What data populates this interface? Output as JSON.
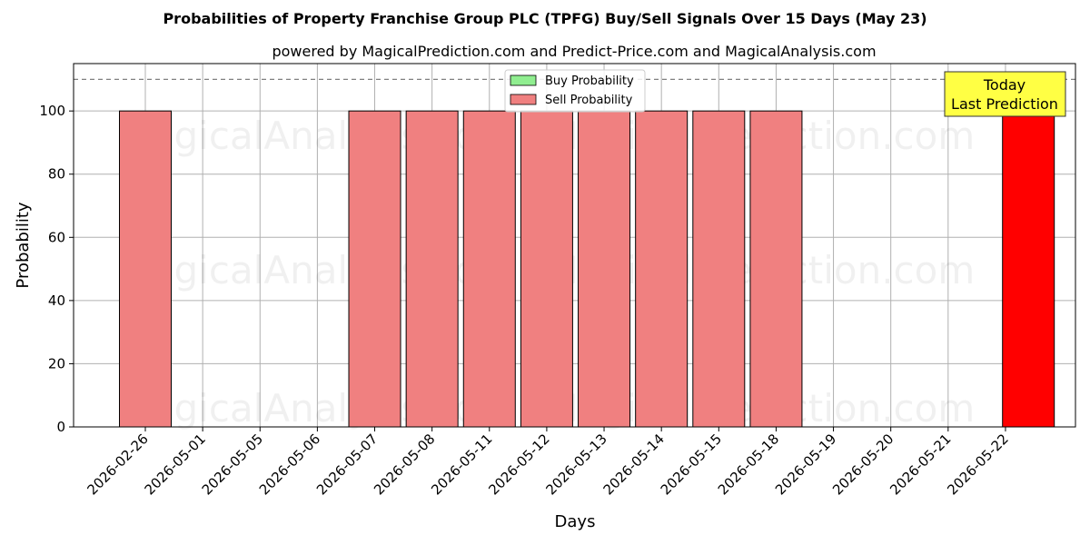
{
  "chart_data": {
    "type": "bar",
    "title": "Probabilities of Property Franchise Group PLC (TPFG) Buy/Sell Signals Over 15 Days (May 23)",
    "subtitle": "powered by MagicalPrediction.com and Predict-Price.com and MagicalAnalysis.com",
    "xlabel": "Days",
    "ylabel": "Probability",
    "ylim": [
      0,
      115
    ],
    "yticks": [
      0,
      20,
      40,
      60,
      80,
      100
    ],
    "reference_line": 110,
    "grid": true,
    "legend_position": "top-center",
    "categories": [
      "2026-02-26",
      "2026-05-01",
      "2026-05-05",
      "2026-05-06",
      "2026-05-07",
      "2026-05-08",
      "2026-05-11",
      "2026-05-12",
      "2026-05-13",
      "2026-05-14",
      "2026-05-15",
      "2026-05-18",
      "2026-05-19",
      "2026-05-20",
      "2026-05-21",
      "2026-05-22"
    ],
    "series": [
      {
        "name": "Buy Probability",
        "color": "#90ee90",
        "values": [
          0,
          0,
          0,
          0,
          0,
          0,
          0,
          0,
          0,
          0,
          0,
          0,
          0,
          0,
          0,
          0
        ]
      },
      {
        "name": "Sell Probability",
        "color": "#f08080",
        "values": [
          100,
          0,
          0,
          0,
          100,
          100,
          100,
          100,
          100,
          100,
          100,
          100,
          0,
          0,
          0,
          0
        ]
      }
    ],
    "today_bar": {
      "category_index": 15.4,
      "value": 100,
      "color": "#ff0000"
    },
    "annotation": {
      "line1": "Today",
      "line2": "Last Prediction",
      "color": "#ffff44"
    },
    "watermarks": [
      "MagicalAnalysis.com",
      "MagicalPrediction.com"
    ]
  }
}
